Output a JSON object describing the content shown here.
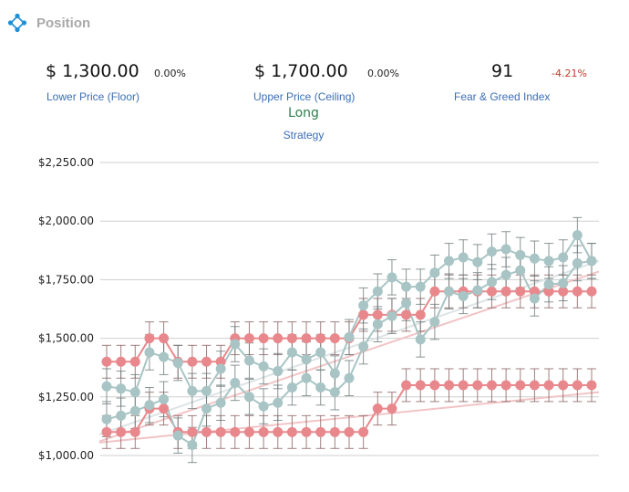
{
  "header": {
    "title": "Position",
    "icon": "diamond-nodes-icon",
    "icon_color": "#1e90d8"
  },
  "metrics": {
    "floor": {
      "value": "$ 1,300.00",
      "change": "0.00%",
      "label": "Lower Price (Floor)"
    },
    "ceiling": {
      "value": "$ 1,700.00",
      "change": "0.00%",
      "label": "Upper Price (Ceiling)"
    },
    "fear_greed": {
      "value": "91",
      "change": "-4.21%",
      "label": "Fear & Greed Index",
      "change_color": "#c0392b"
    }
  },
  "strategy": {
    "value": "Long",
    "label": "Strategy",
    "value_color": "#2e7d4f"
  },
  "chart_data": {
    "type": "line",
    "ylim": [
      1000,
      2250
    ],
    "yticks": [
      1000,
      1250,
      1500,
      1750,
      2000,
      2250
    ],
    "ytick_labels": [
      "$1,000.00",
      "$1,250.00",
      "$1,500.00",
      "$1,750.00",
      "$2,000.00",
      "$2,250.00"
    ],
    "grid": true,
    "x": [
      1,
      2,
      3,
      4,
      5,
      6,
      7,
      8,
      9,
      10,
      11,
      12,
      13,
      14,
      15,
      16,
      17,
      18,
      19,
      20,
      21,
      22,
      23,
      24,
      25,
      26,
      27,
      28,
      29,
      30,
      31,
      32,
      33,
      34,
      35
    ],
    "series": [
      {
        "color": "#e8888c",
        "error": 70,
        "values": [
          1400,
          1400,
          1400,
          1500,
          1500,
          1400,
          1400,
          1400,
          1400,
          1500,
          1500,
          1500,
          1500,
          1500,
          1500,
          1500,
          1500,
          1500,
          1600,
          1600,
          1600,
          1600,
          1600,
          1700,
          1700,
          1700,
          1700,
          1700,
          1700,
          1700,
          1700,
          1700,
          1700,
          1700,
          1700
        ]
      },
      {
        "color": "#e8888c",
        "error": 70,
        "values": [
          1100,
          1100,
          1100,
          1200,
          1200,
          1100,
          1100,
          1100,
          1100,
          1100,
          1100,
          1100,
          1100,
          1100,
          1100,
          1100,
          1100,
          1100,
          1100,
          1200,
          1200,
          1300,
          1300,
          1300,
          1300,
          1300,
          1300,
          1300,
          1300,
          1300,
          1300,
          1300,
          1300,
          1300,
          1300
        ]
      },
      {
        "color": "#a8c4c4",
        "error": 75,
        "values": [
          1295,
          1285,
          1270,
          1440,
          1420,
          1395,
          1275,
          1275,
          1370,
          1475,
          1405,
          1380,
          1360,
          1440,
          1410,
          1440,
          1350,
          1505,
          1640,
          1700,
          1760,
          1720,
          1720,
          1780,
          1830,
          1845,
          1825,
          1870,
          1880,
          1855,
          1840,
          1830,
          1845,
          1940,
          1830
        ]
      },
      {
        "color": "#a8c4c4",
        "error": 75,
        "values": [
          1155,
          1170,
          1190,
          1215,
          1240,
          1085,
          1045,
          1200,
          1225,
          1310,
          1250,
          1210,
          1225,
          1290,
          1330,
          1290,
          1270,
          1330,
          1465,
          1560,
          1595,
          1650,
          1495,
          1570,
          1700,
          1680,
          1705,
          1740,
          1770,
          1790,
          1670,
          1730,
          1735,
          1820,
          1830
        ]
      }
    ],
    "trendlines": [
      {
        "color": "#f2c4c6",
        "from": [
          1060,
          1265
        ],
        "to": [
          1785,
          1925
        ]
      },
      {
        "color": "#f2c4c6",
        "from": [
          1055,
          1240
        ],
        "to": [
          1270,
          1315
        ]
      },
      {
        "color": "#dde4e6",
        "from": [
          1090,
          1400
        ],
        "to": [
          1830,
          2040
        ]
      }
    ]
  }
}
